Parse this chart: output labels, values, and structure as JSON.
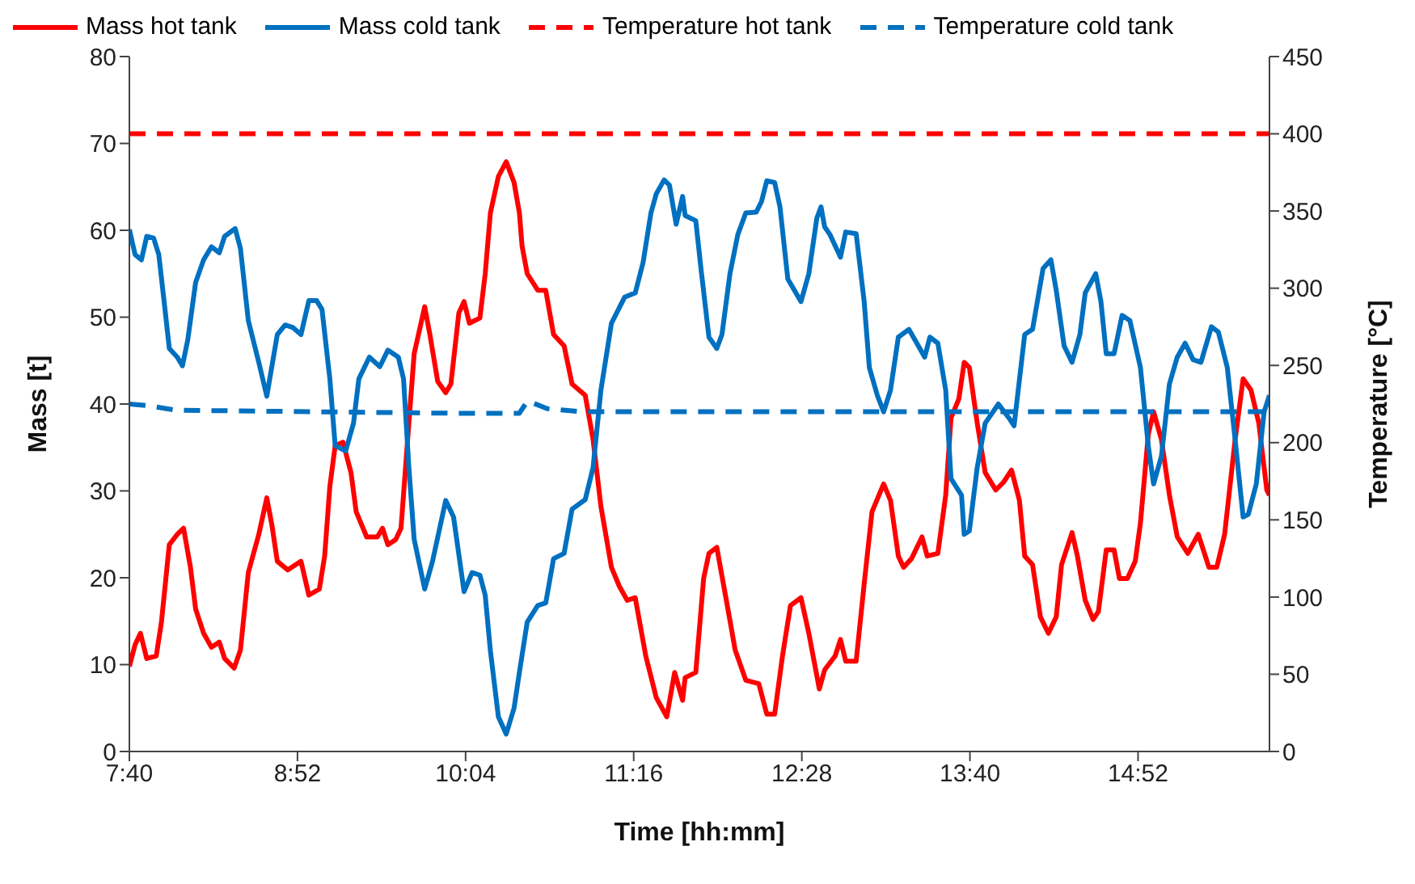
{
  "chart_data": {
    "type": "line",
    "xlabel": "Time [hh:mm]",
    "ylabel": "Mass [t]",
    "y2label": "Temperature [°C]",
    "xlim": [
      7.667,
      15.805
    ],
    "xticks": [
      {
        "value": 7.667,
        "label": "7:40"
      },
      {
        "value": 8.867,
        "label": "8:52"
      },
      {
        "value": 10.067,
        "label": "10:04"
      },
      {
        "value": 11.267,
        "label": "11:16"
      },
      {
        "value": 12.467,
        "label": "12:28"
      },
      {
        "value": 13.667,
        "label": "13:40"
      },
      {
        "value": 14.867,
        "label": "14:52"
      }
    ],
    "ylim": [
      0,
      80
    ],
    "yticks": [
      0,
      10,
      20,
      30,
      40,
      50,
      60,
      70,
      80
    ],
    "y2lim": [
      0,
      450
    ],
    "y2ticks": [
      0,
      50,
      100,
      150,
      200,
      250,
      300,
      350,
      400,
      450
    ],
    "legend": "top",
    "marker": "none",
    "series": [
      {
        "name": "Mass hot tank",
        "color": "#ff0000",
        "line_style": "solid",
        "x": [
          7.667,
          7.708,
          7.746,
          7.791,
          7.859,
          7.896,
          7.952,
          8.009,
          8.054,
          8.103,
          8.14,
          8.197,
          8.253,
          8.309,
          8.347,
          8.415,
          8.46,
          8.516,
          8.591,
          8.648,
          8.685,
          8.723,
          8.798,
          8.892,
          8.948,
          9.023,
          9.061,
          9.098,
          9.136,
          9.192,
          9.249,
          9.286,
          9.361,
          9.437,
          9.474,
          9.512,
          9.568,
          9.606,
          9.662,
          9.7,
          9.775,
          9.812,
          9.868,
          9.925,
          9.962,
          10.019,
          10.056,
          10.094,
          10.169,
          10.207,
          10.244,
          10.301,
          10.357,
          10.413,
          10.451,
          10.47,
          10.507,
          10.582,
          10.639,
          10.695,
          10.77,
          10.827,
          10.921,
          10.977,
          11.033,
          11.108,
          11.165,
          11.221,
          11.278,
          11.353,
          11.428,
          11.503,
          11.559,
          11.616,
          11.634,
          11.71,
          11.766,
          11.804,
          11.86,
          11.935,
          11.991,
          12.067,
          12.16,
          12.217,
          12.273,
          12.329,
          12.386,
          12.461,
          12.517,
          12.592,
          12.63,
          12.705,
          12.743,
          12.78,
          12.855,
          12.912,
          12.968,
          13.051,
          13.1,
          13.156,
          13.193,
          13.25,
          13.325,
          13.362,
          13.438,
          13.494,
          13.532,
          13.588,
          13.626,
          13.663,
          13.719,
          13.776,
          13.851,
          13.907,
          13.964,
          14.02,
          14.058,
          14.114,
          14.17,
          14.227,
          14.283,
          14.321,
          14.396,
          14.434,
          14.49,
          14.546,
          14.584,
          14.64,
          14.696,
          14.734,
          14.791,
          14.847,
          14.884,
          14.94,
          14.978,
          15.034,
          15.091,
          15.147,
          15.222,
          15.297,
          15.373,
          15.429,
          15.485,
          15.56,
          15.617,
          15.673,
          15.729,
          15.786,
          15.805
        ],
        "values": [
          9.8,
          12.3,
          13.6,
          10.7,
          11.0,
          14.9,
          23.8,
          25.0,
          25.7,
          21.2,
          16.4,
          13.6,
          12.0,
          12.6,
          10.7,
          9.6,
          11.7,
          20.6,
          25.0,
          29.2,
          26.0,
          21.9,
          20.9,
          21.9,
          18.0,
          18.7,
          22.5,
          30.5,
          35.2,
          35.6,
          32.1,
          27.6,
          24.7,
          24.7,
          25.7,
          23.8,
          24.4,
          25.7,
          37.8,
          45.8,
          51.2,
          48.0,
          42.6,
          41.3,
          42.3,
          50.5,
          51.8,
          49.3,
          49.9,
          55.0,
          62.0,
          66.2,
          67.9,
          65.5,
          62.0,
          58.2,
          55.0,
          53.1,
          53.1,
          48.0,
          46.7,
          42.3,
          41.0,
          35.9,
          28.2,
          21.2,
          19.0,
          17.4,
          17.7,
          11.0,
          6.2,
          4.0,
          9.1,
          5.9,
          8.5,
          9.1,
          19.9,
          22.8,
          23.5,
          16.8,
          11.7,
          8.2,
          7.8,
          4.3,
          4.3,
          11.0,
          16.8,
          17.7,
          13.6,
          7.2,
          9.4,
          11.0,
          12.9,
          10.4,
          10.4,
          19.3,
          27.6,
          30.8,
          28.9,
          22.5,
          21.2,
          22.2,
          24.7,
          22.5,
          22.8,
          29.5,
          38.4,
          40.6,
          44.8,
          44.2,
          37.8,
          32.1,
          30.1,
          31.0,
          32.4,
          28.9,
          22.5,
          21.5,
          15.5,
          13.6,
          15.5,
          21.5,
          25.2,
          22.5,
          17.4,
          15.2,
          16.1,
          23.2,
          23.2,
          19.9,
          19.9,
          21.9,
          26.3,
          36.5,
          39.1,
          35.9,
          29.5,
          24.7,
          22.8,
          25.0,
          21.2,
          21.2,
          25.0,
          35.9,
          42.9,
          41.6,
          37.8,
          30.1,
          29.5
        ]
      },
      {
        "name": "Mass cold tank",
        "color": "#0070c0",
        "line_style": "solid",
        "x": [
          7.667,
          7.708,
          7.753,
          7.791,
          7.84,
          7.877,
          7.915,
          7.952,
          8.009,
          8.046,
          8.084,
          8.14,
          8.197,
          8.253,
          8.309,
          8.347,
          8.422,
          8.46,
          8.516,
          8.591,
          8.648,
          8.723,
          8.779,
          8.835,
          8.892,
          8.948,
          9.004,
          9.042,
          9.098,
          9.136,
          9.211,
          9.267,
          9.305,
          9.38,
          9.455,
          9.512,
          9.587,
          9.624,
          9.662,
          9.7,
          9.775,
          9.831,
          9.925,
          9.981,
          10.056,
          10.113,
          10.169,
          10.207,
          10.244,
          10.301,
          10.357,
          10.413,
          10.451,
          10.507,
          10.582,
          10.639,
          10.695,
          10.77,
          10.827,
          10.921,
          10.977,
          11.033,
          11.108,
          11.202,
          11.278,
          11.334,
          11.39,
          11.428,
          11.484,
          11.522,
          11.57,
          11.616,
          11.634,
          11.71,
          11.747,
          11.804,
          11.86,
          11.897,
          11.954,
          12.01,
          12.067,
          12.142,
          12.179,
          12.217,
          12.273,
          12.311,
          12.367,
          12.461,
          12.517,
          12.574,
          12.604,
          12.63,
          12.668,
          12.743,
          12.78,
          12.855,
          12.912,
          12.949,
          13.006,
          13.051,
          13.1,
          13.156,
          13.231,
          13.288,
          13.344,
          13.381,
          13.438,
          13.494,
          13.532,
          13.607,
          13.626,
          13.663,
          13.719,
          13.776,
          13.87,
          13.945,
          13.982,
          14.058,
          14.114,
          14.189,
          14.245,
          14.283,
          14.339,
          14.396,
          14.452,
          14.49,
          14.565,
          14.602,
          14.64,
          14.696,
          14.753,
          14.809,
          14.884,
          14.94,
          14.978,
          15.034,
          15.091,
          15.147,
          15.203,
          15.26,
          15.316,
          15.391,
          15.44,
          15.504,
          15.56,
          15.617,
          15.654,
          15.711,
          15.767,
          15.805
        ],
        "values": [
          60.1,
          57.2,
          56.6,
          59.3,
          59.1,
          57.2,
          51.8,
          46.4,
          45.4,
          44.4,
          47.4,
          54.0,
          56.6,
          58.1,
          57.4,
          59.3,
          60.2,
          57.9,
          49.6,
          44.8,
          40.9,
          48.0,
          49.1,
          48.8,
          48.0,
          51.9,
          51.9,
          50.9,
          42.9,
          35.2,
          34.6,
          37.8,
          42.9,
          45.4,
          44.3,
          46.2,
          45.4,
          42.9,
          32.7,
          24.4,
          18.7,
          21.9,
          28.9,
          27.0,
          18.4,
          20.6,
          20.3,
          18.0,
          11.6,
          4.0,
          2.0,
          5.0,
          9.1,
          14.9,
          16.8,
          17.1,
          22.2,
          22.8,
          27.9,
          29.0,
          32.7,
          41.6,
          49.3,
          52.3,
          52.8,
          56.3,
          62.0,
          64.2,
          65.8,
          65.2,
          60.7,
          63.9,
          61.7,
          61.1,
          55.6,
          47.7,
          46.4,
          48.0,
          55.0,
          59.5,
          62.0,
          62.1,
          63.3,
          65.7,
          65.5,
          62.7,
          54.4,
          51.8,
          55.0,
          61.4,
          62.7,
          60.4,
          59.5,
          56.9,
          59.8,
          59.6,
          51.8,
          44.2,
          41.0,
          39.1,
          41.6,
          47.7,
          48.6,
          47.0,
          45.4,
          47.7,
          47.0,
          41.6,
          31.4,
          29.5,
          25.0,
          25.4,
          32.7,
          37.8,
          40.0,
          38.4,
          37.5,
          48.0,
          48.6,
          55.6,
          56.6,
          53.1,
          46.7,
          44.8,
          48.0,
          52.8,
          55.0,
          51.8,
          45.8,
          45.8,
          50.2,
          49.6,
          44.2,
          35.2,
          30.8,
          34.0,
          42.3,
          45.4,
          47.0,
          45.1,
          44.8,
          48.9,
          48.3,
          44.2,
          35.9,
          27.0,
          27.3,
          30.8,
          39.1,
          41.0
        ]
      },
      {
        "name": "Temperature hot tank",
        "color": "#ff0000",
        "line_style": "dashed",
        "axis": "y2",
        "x": [
          7.667,
          15.805
        ],
        "values": [
          400,
          400
        ]
      },
      {
        "name": "Temperature cold tank",
        "color": "#0070c0",
        "line_style": "dashed",
        "axis": "y2",
        "x": [
          7.667,
          7.8,
          8.0,
          9.0,
          10.0,
          10.45,
          10.51,
          10.65,
          10.9,
          15.805
        ],
        "values": [
          225,
          224,
          221,
          220,
          219,
          219,
          227,
          222,
          220,
          220
        ]
      }
    ]
  }
}
